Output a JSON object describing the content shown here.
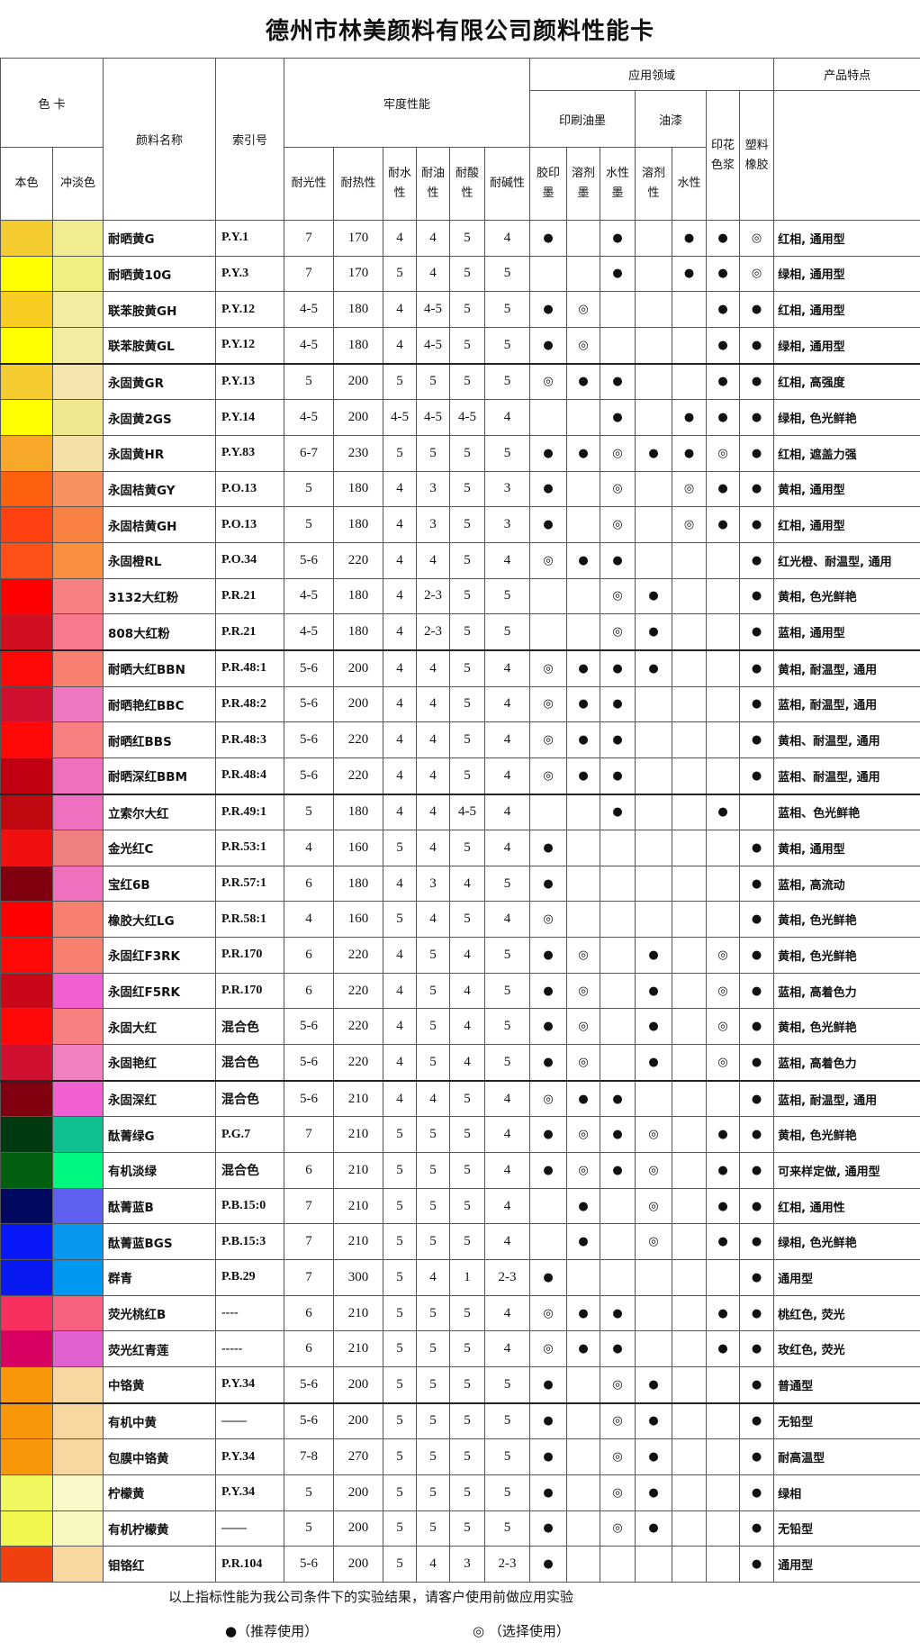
{
  "title": "德州市林美颜料有限公司颜料性能卡",
  "header": {
    "color_card": "色 卡",
    "base_color": "本色",
    "tint_color": "冲淡色",
    "pigment_name": "颜料名称",
    "index_no": "索引号",
    "fastness": "牢度性能",
    "fastness_cols": [
      "耐光性",
      "耐热性",
      "耐水性",
      "耐油性",
      "耐酸性",
      "耐碱性"
    ],
    "application": "应用领域",
    "printing_ink": "印刷油墨",
    "ink_cols": [
      "胶印墨",
      "溶剂墨",
      "水性墨"
    ],
    "paint": "油漆",
    "paint_cols": [
      "溶剂性",
      "水性"
    ],
    "textile_paste": "印花色浆",
    "plastic_rubber": "塑料橡胶",
    "features": "产品特点"
  },
  "symbols": {
    "recommended": "●",
    "optional": "◎"
  },
  "rows": [
    {
      "base": "#f5cc30",
      "tint": "#f0ec90",
      "name": "耐晒黄G",
      "index": "P.Y.1",
      "f": [
        "7",
        "170",
        "4",
        "4",
        "5",
        "4"
      ],
      "a": [
        "●",
        "",
        "●",
        "",
        "●",
        "●",
        "◎"
      ],
      "feature": "红相, 通用型"
    },
    {
      "base": "#ffff00",
      "tint": "#eef080",
      "name": "耐晒黄10G",
      "index": "P.Y.3",
      "f": [
        "7",
        "170",
        "5",
        "4",
        "5",
        "5"
      ],
      "a": [
        "",
        "",
        "●",
        "",
        "●",
        "●",
        "◎"
      ],
      "feature": "绿相, 通用型"
    },
    {
      "base": "#f8cc20",
      "tint": "#f0eca0",
      "name": "联苯胺黄GH",
      "index": "P.Y.12",
      "f": [
        "4-5",
        "180",
        "4",
        "4-5",
        "5",
        "5"
      ],
      "a": [
        "●",
        "◎",
        "",
        "",
        "",
        "●",
        "●"
      ],
      "feature": "红相, 通用型"
    },
    {
      "base": "#ffff00",
      "tint": "#f0eca0",
      "name": "联苯胺黄GL",
      "index": "P.Y.12",
      "f": [
        "4-5",
        "180",
        "4",
        "4-5",
        "5",
        "5"
      ],
      "a": [
        "●",
        "◎",
        "",
        "",
        "",
        "●",
        "●"
      ],
      "feature": "绿相, 通用型"
    },
    {
      "base": "#f5cc30",
      "tint": "#f5e6b0",
      "name": "永固黄GR",
      "index": "P.Y.13",
      "f": [
        "5",
        "200",
        "5",
        "5",
        "5",
        "5"
      ],
      "a": [
        "◎",
        "●",
        "●",
        "",
        "",
        "●",
        "●"
      ],
      "feature": "红相, 高强度"
    },
    {
      "base": "#ffff00",
      "tint": "#f0e890",
      "name": "永固黄2GS",
      "index": "P.Y.14",
      "f": [
        "4-5",
        "200",
        "4-5",
        "4-5",
        "4-5",
        "4"
      ],
      "a": [
        "",
        "",
        "●",
        "",
        "●",
        "●",
        "●"
      ],
      "feature": "绿相, 色光鲜艳"
    },
    {
      "base": "#f8a828",
      "tint": "#f5e0a8",
      "name": "永固黄HR",
      "index": "P.Y.83",
      "f": [
        "6-7",
        "230",
        "5",
        "5",
        "5",
        "5"
      ],
      "a": [
        "●",
        "●",
        "◎",
        "●",
        "●",
        "◎",
        "●"
      ],
      "feature": "红相, 遮盖力强"
    },
    {
      "base": "#ff6010",
      "tint": "#f89060",
      "name": "永固桔黄GY",
      "index": "P.O.13",
      "f": [
        "5",
        "180",
        "4",
        "3",
        "5",
        "3"
      ],
      "a": [
        "●",
        "",
        "◎",
        "",
        "◎",
        "●",
        "●"
      ],
      "feature": "黄相, 通用型"
    },
    {
      "base": "#ff4010",
      "tint": "#f88040",
      "name": "永固桔黄GH",
      "index": "P.O.13",
      "f": [
        "5",
        "180",
        "4",
        "3",
        "5",
        "3"
      ],
      "a": [
        "●",
        "",
        "◎",
        "",
        "◎",
        "●",
        "●"
      ],
      "feature": "红相, 通用型"
    },
    {
      "base": "#ff5018",
      "tint": "#f89040",
      "name": "永固橙RL",
      "index": "P.O.34",
      "f": [
        "5-6",
        "220",
        "4",
        "4",
        "5",
        "4"
      ],
      "a": [
        "◎",
        "●",
        "●",
        "",
        "",
        "",
        "●"
      ],
      "feature": "红光橙、耐温型, 通用"
    },
    {
      "base": "#ff0000",
      "tint": "#f88080",
      "name": "3132大红粉",
      "index": "P.R.21",
      "f": [
        "4-5",
        "180",
        "4",
        "2-3",
        "5",
        "5"
      ],
      "a": [
        "",
        "",
        "◎",
        "●",
        "",
        "",
        "●"
      ],
      "feature": "黄相, 色光鲜艳"
    },
    {
      "base": "#d01020",
      "tint": "#f87890",
      "name": "808大红粉",
      "index": "P.R.21",
      "f": [
        "4-5",
        "180",
        "4",
        "2-3",
        "5",
        "5"
      ],
      "a": [
        "",
        "",
        "◎",
        "●",
        "",
        "",
        "●"
      ],
      "feature": "蓝相, 通用型"
    },
    {
      "base": "#ff0808",
      "tint": "#f88070",
      "name": "耐晒大红BBN",
      "index": "P.R.48:1",
      "f": [
        "5-6",
        "200",
        "4",
        "4",
        "5",
        "4"
      ],
      "a": [
        "◎",
        "●",
        "●",
        "●",
        "",
        "",
        "●"
      ],
      "feature": "黄相, 耐温型, 通用"
    },
    {
      "base": "#d01030",
      "tint": "#f078c0",
      "name": "耐晒艳红BBC",
      "index": "P.R.48:2",
      "f": [
        "5-6",
        "200",
        "4",
        "4",
        "5",
        "4"
      ],
      "a": [
        "◎",
        "●",
        "●",
        "",
        "",
        "",
        "●"
      ],
      "feature": "蓝相, 耐温型, 通用"
    },
    {
      "base": "#ff0808",
      "tint": "#f88080",
      "name": "耐晒红BBS",
      "index": "P.R.48:3",
      "f": [
        "5-6",
        "220",
        "4",
        "4",
        "5",
        "4"
      ],
      "a": [
        "◎",
        "●",
        "●",
        "",
        "",
        "",
        "●"
      ],
      "feature": "黄相、耐温型, 通用"
    },
    {
      "base": "#c00010",
      "tint": "#f070c0",
      "name": "耐晒深红BBM",
      "index": "P.R.48:4",
      "f": [
        "5-6",
        "220",
        "4",
        "4",
        "5",
        "4"
      ],
      "a": [
        "◎",
        "●",
        "●",
        "",
        "",
        "",
        "●"
      ],
      "feature": "蓝相、耐温型, 通用"
    },
    {
      "base": "#c00810",
      "tint": "#f070c0",
      "name": "立索尔大红",
      "index": "P.R.49:1",
      "f": [
        "5",
        "180",
        "4",
        "4",
        "4-5",
        "4"
      ],
      "a": [
        "",
        "",
        "●",
        "",
        "",
        "●",
        ""
      ],
      "feature": "蓝相、色光鲜艳"
    },
    {
      "base": "#f01010",
      "tint": "#f08080",
      "name": "金光红C",
      "index": "P.R.53:1",
      "f": [
        "4",
        "160",
        "5",
        "4",
        "5",
        "4"
      ],
      "a": [
        "●",
        "",
        "",
        "",
        "",
        "",
        "●"
      ],
      "feature": "黄相, 通用型"
    },
    {
      "base": "#800010",
      "tint": "#f070c0",
      "name": "宝红6B",
      "index": "P.R.57:1",
      "f": [
        "6",
        "180",
        "4",
        "3",
        "4",
        "5"
      ],
      "a": [
        "●",
        "",
        "",
        "",
        "",
        "",
        "●"
      ],
      "feature": "蓝相, 高流动"
    },
    {
      "base": "#ff0000",
      "tint": "#f88070",
      "name": "橡胶大红LG",
      "index": "P.R.58:1",
      "f": [
        "4",
        "160",
        "5",
        "4",
        "5",
        "4"
      ],
      "a": [
        "◎",
        "",
        "",
        "",
        "",
        "",
        "●"
      ],
      "feature": "黄相, 色光鲜艳"
    },
    {
      "base": "#ff0808",
      "tint": "#f88070",
      "name": "永固红F3RK",
      "index": "P.R.170",
      "f": [
        "6",
        "220",
        "4",
        "5",
        "4",
        "5"
      ],
      "a": [
        "●",
        "◎",
        "",
        "●",
        "",
        "◎",
        "●"
      ],
      "feature": "黄相, 色光鲜艳"
    },
    {
      "base": "#c80818",
      "tint": "#f060d0",
      "name": "永固红F5RK",
      "index": "P.R.170",
      "f": [
        "6",
        "220",
        "4",
        "5",
        "4",
        "5"
      ],
      "a": [
        "●",
        "◎",
        "",
        "●",
        "",
        "◎",
        "●"
      ],
      "feature": "蓝相, 高着色力"
    },
    {
      "base": "#ff0808",
      "tint": "#f88080",
      "name": "永固大红",
      "index": "混合色",
      "f": [
        "5-6",
        "220",
        "4",
        "5",
        "4",
        "5"
      ],
      "a": [
        "●",
        "◎",
        "",
        "●",
        "",
        "◎",
        "●"
      ],
      "feature": "黄相, 色光鲜艳"
    },
    {
      "base": "#d01030",
      "tint": "#f080c0",
      "name": "永固艳红",
      "index": "混合色",
      "f": [
        "5-6",
        "220",
        "4",
        "5",
        "4",
        "5"
      ],
      "a": [
        "●",
        "◎",
        "",
        "●",
        "",
        "◎",
        "●"
      ],
      "feature": "蓝相, 高着色力"
    },
    {
      "base": "#800010",
      "tint": "#f060d0",
      "name": "永固深红",
      "index": "混合色",
      "f": [
        "5-6",
        "210",
        "4",
        "4",
        "5",
        "4"
      ],
      "a": [
        "◎",
        "●",
        "●",
        "",
        "",
        "",
        "●"
      ],
      "feature": "蓝相, 耐温型, 通用"
    },
    {
      "base": "#003810",
      "tint": "#10c090",
      "name": "酞菁绿G",
      "index": "P.G.7",
      "f": [
        "7",
        "210",
        "5",
        "5",
        "5",
        "4"
      ],
      "a": [
        "●",
        "◎",
        "●",
        "◎",
        "",
        "●",
        "●"
      ],
      "feature": "黄相, 色光鲜艳"
    },
    {
      "base": "#006010",
      "tint": "#00f880",
      "name": "有机淡绿",
      "index": "混合色",
      "f": [
        "6",
        "210",
        "5",
        "5",
        "5",
        "4"
      ],
      "a": [
        "●",
        "◎",
        "●",
        "◎",
        "",
        "●",
        "●"
      ],
      "feature": "可来样定做, 通用型"
    },
    {
      "base": "#000860",
      "tint": "#6060f0",
      "name": "酞菁蓝B",
      "index": "P.B.15:0",
      "f": [
        "7",
        "210",
        "5",
        "5",
        "5",
        "4"
      ],
      "a": [
        "",
        "●",
        "",
        "◎",
        "",
        "●",
        "●"
      ],
      "feature": "红相, 通用性"
    },
    {
      "base": "#0818f8",
      "tint": "#0898f0",
      "name": "酞菁蓝BGS",
      "index": "P.B.15:3",
      "f": [
        "7",
        "210",
        "5",
        "5",
        "5",
        "4"
      ],
      "a": [
        "",
        "●",
        "",
        "◎",
        "",
        "●",
        "●"
      ],
      "feature": "绿相, 色光鲜艳"
    },
    {
      "base": "#0818f0",
      "tint": "#0098f0",
      "name": "群青",
      "index": "P.B.29",
      "f": [
        "7",
        "300",
        "5",
        "4",
        "1",
        "2-3"
      ],
      "a": [
        "●",
        "",
        "",
        "",
        "",
        "",
        "●"
      ],
      "feature": "通用型"
    },
    {
      "base": "#f83060",
      "tint": "#f86080",
      "name": "荧光桃红B",
      "index": "----",
      "f": [
        "6",
        "210",
        "5",
        "5",
        "5",
        "4"
      ],
      "a": [
        "◎",
        "●",
        "●",
        "",
        "",
        "●",
        "●"
      ],
      "feature": "桃红色, 荧光"
    },
    {
      "base": "#d80060",
      "tint": "#e060d0",
      "name": "荧光红青莲",
      "index": "-----",
      "f": [
        "6",
        "210",
        "5",
        "5",
        "5",
        "4"
      ],
      "a": [
        "◎",
        "●",
        "●",
        "",
        "",
        "●",
        "●"
      ],
      "feature": "玫红色, 荧光"
    },
    {
      "base": "#f89808",
      "tint": "#f8d8a0",
      "name": "中铬黄",
      "index": "P.Y.34",
      "f": [
        "5-6",
        "200",
        "5",
        "5",
        "5",
        "5"
      ],
      "a": [
        "●",
        "",
        "◎",
        "●",
        "",
        "",
        "●"
      ],
      "feature": "普通型"
    },
    {
      "base": "#f89808",
      "tint": "#f8d8a0",
      "name": "有机中黄",
      "index": "——",
      "f": [
        "5-6",
        "200",
        "5",
        "5",
        "5",
        "5"
      ],
      "a": [
        "●",
        "",
        "◎",
        "●",
        "",
        "",
        "●"
      ],
      "feature": "无铅型"
    },
    {
      "base": "#f89808",
      "tint": "#f8d8a0",
      "name": "包膜中铬黄",
      "index": "P.Y.34",
      "f": [
        "7-8",
        "270",
        "5",
        "5",
        "5",
        "5"
      ],
      "a": [
        "●",
        "",
        "◎",
        "●",
        "",
        "",
        "●"
      ],
      "feature": "耐高温型"
    },
    {
      "base": "#f0f860",
      "tint": "#f8f8c8",
      "name": "柠檬黄",
      "index": "P.Y.34",
      "f": [
        "5",
        "200",
        "5",
        "5",
        "5",
        "5"
      ],
      "a": [
        "●",
        "",
        "◎",
        "●",
        "",
        "",
        "●"
      ],
      "feature": "绿相"
    },
    {
      "base": "#f0f850",
      "tint": "#f8f8c0",
      "name": "有机柠檬黄",
      "index": "——",
      "f": [
        "5",
        "200",
        "5",
        "5",
        "5",
        "5"
      ],
      "a": [
        "●",
        "",
        "◎",
        "●",
        "",
        "",
        "●"
      ],
      "feature": "无铅型"
    },
    {
      "base": "#f04010",
      "tint": "#f8d8a0",
      "name": "钼铬红",
      "index": "P.R.104",
      "f": [
        "5-6",
        "200",
        "5",
        "4",
        "3",
        "2-3"
      ],
      "a": [
        "●",
        "",
        "",
        "",
        "",
        "",
        "●"
      ],
      "feature": "通用型"
    }
  ],
  "footer": {
    "note": "以上指标性能为我公司条件下的实验结果，请客户使用前做应用实验",
    "legend_recommended": "●（推荐使用）",
    "legend_optional": "◎ （选择使用）"
  }
}
